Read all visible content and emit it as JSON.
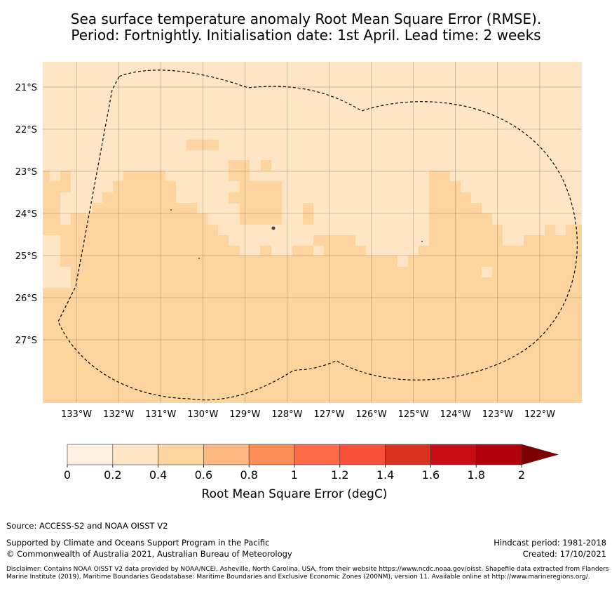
{
  "title": {
    "line1": "Sea surface temperature anomaly Root Mean Square Error (RMSE).",
    "line2": "Period: Fortnightly. Initialisation date: 1st April. Lead time: 2 weeks"
  },
  "map": {
    "lon_range": [
      -133.8,
      -121.0
    ],
    "lat_range": [
      -28.5,
      -20.4
    ],
    "lon_ticks": [
      {
        "value": -133,
        "label": "133°W"
      },
      {
        "value": -132,
        "label": "132°W"
      },
      {
        "value": -131,
        "label": "131°W"
      },
      {
        "value": -130,
        "label": "130°W"
      },
      {
        "value": -129,
        "label": "129°W"
      },
      {
        "value": -128,
        "label": "128°W"
      },
      {
        "value": -127,
        "label": "127°W"
      },
      {
        "value": -126,
        "label": "126°W"
      },
      {
        "value": -125,
        "label": "125°W"
      },
      {
        "value": -124,
        "label": "124°W"
      },
      {
        "value": -123,
        "label": "123°W"
      },
      {
        "value": -122,
        "label": "122°W"
      }
    ],
    "lat_ticks": [
      {
        "value": -21,
        "label": "21°S"
      },
      {
        "value": -22,
        "label": "22°S"
      },
      {
        "value": -23,
        "label": "23°S"
      },
      {
        "value": -24,
        "label": "24°S"
      },
      {
        "value": -25,
        "label": "25°S"
      },
      {
        "value": -26,
        "label": "26°S"
      },
      {
        "value": -27,
        "label": "27°S"
      }
    ],
    "regions": {
      "class_0_2_to_0_4": "north and upper band of the domain (background)",
      "class_0_4_to_0_6": "southern half and southern part of the domain"
    },
    "colors": {
      "rmse_0_2_0_4": "#fee5c5",
      "rmse_0_4_0_6": "#fdd49d",
      "gridline": "#6b5a45",
      "eez_boundary": "#000000"
    },
    "grid": true,
    "eez_boundary_style": "dashed"
  },
  "colorbar": {
    "label": "Root Mean Square Error (degC)",
    "ticks": [
      "0",
      "0.2",
      "0.4",
      "0.6",
      "0.8",
      "1",
      "1.2",
      "1.4",
      "1.6",
      "1.8",
      "2"
    ],
    "colors": [
      "#fff1e1",
      "#fee5c5",
      "#fdd49d",
      "#fdb97f",
      "#fd8d57",
      "#fc6a49",
      "#fa4f3b",
      "#db3220",
      "#c90d13",
      "#b10009",
      "#7f0000"
    ],
    "extend": "max"
  },
  "footer": {
    "source": "Source: ACCESS-S2 and NOAA OISST V2",
    "supported": "Supported by Climate and Oceans Support Program in the Pacific",
    "copyright": "© Commonwealth of Australia 2021, Australian Bureau of Meteorology",
    "hindcast": "Hindcast period: 1981-2018",
    "created": "Created: 17/10/2021",
    "disclaimer": "Disclaimer: Contains NOAA OISST V2 data provided by NOAA/NCEI, Asheville, North Carolina, USA, from their website https://www.ncdc.noaa.gov/oisst. Shapefile data extracted from Flanders Marine Institute (2019), Maritime Boundaries Geodatabase: Maritime Boundaries and Exclusive Economic Zones (200NM), version 11. Available online at http://www.marineregions.org/."
  }
}
